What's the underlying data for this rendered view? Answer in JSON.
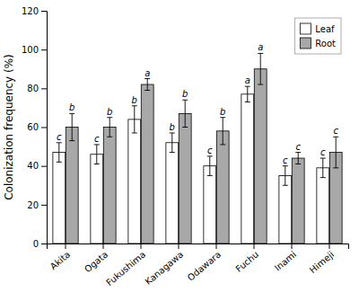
{
  "chart_data": {
    "type": "bar",
    "categories": [
      "Akita",
      "Ogata",
      "Fukushima",
      "Kanagawa",
      "Odawara",
      "Fuchu",
      "Inami",
      "Himeji"
    ],
    "series": [
      {
        "name": "Leaf",
        "color": "#ffffff",
        "values": [
          47,
          46,
          64,
          52,
          40,
          77,
          35,
          39
        ],
        "errors": [
          5,
          5,
          7,
          5,
          5,
          4,
          5,
          5
        ],
        "labels": [
          "c",
          "c",
          "b",
          "b",
          "c",
          "a",
          "c",
          "c"
        ]
      },
      {
        "name": "Root",
        "color": "#a8a8a8",
        "values": [
          60,
          60,
          82,
          67,
          58,
          90,
          44,
          47
        ],
        "errors": [
          7,
          5,
          3,
          7,
          7,
          8,
          3,
          8
        ],
        "labels": [
          "b",
          "b",
          "a",
          "b",
          "b",
          "a",
          "c",
          "c"
        ]
      }
    ],
    "y_label": "Colonization frequency (%)",
    "ylim": [
      0,
      120
    ],
    "yticks": [
      0,
      20,
      40,
      60,
      80,
      100,
      120
    ],
    "grid": false,
    "legend": "upper right"
  }
}
